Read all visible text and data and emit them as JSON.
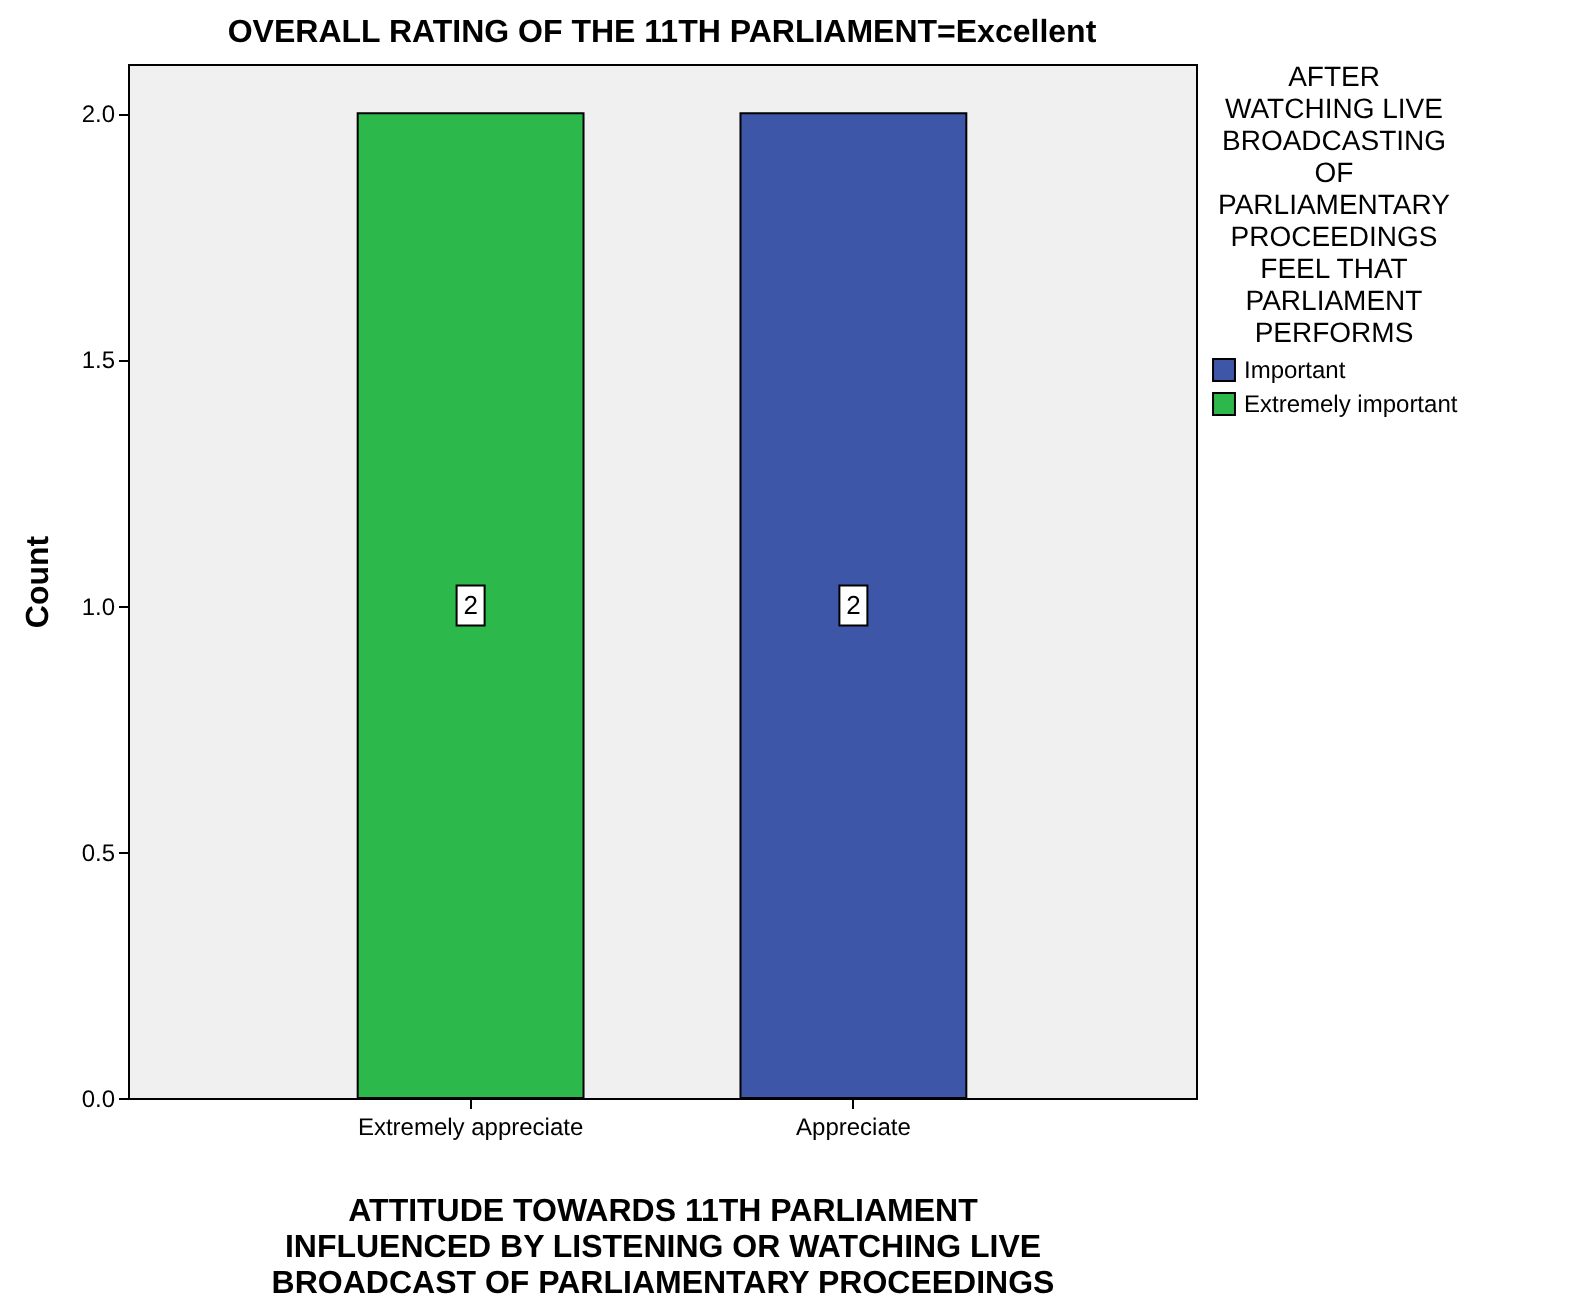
{
  "chart_data": {
    "type": "bar",
    "title": "OVERALL RATING OF THE 11TH PARLIAMENT=Excellent",
    "xlabel": "ATTITUDE TOWARDS 11TH PARLIAMENT INFLUENCED BY LISTENING OR WATCHING LIVE BROADCAST OF PARLIAMENTARY PROCEEDINGS",
    "ylabel": "Count",
    "legend_title": "AFTER WATCHING LIVE BROADCASTING OF PARLIAMENTARY PROCEEDINGS FEEL THAT PARLIAMENT PERFORMS",
    "categories": [
      "Extremely appreciate",
      "Appreciate"
    ],
    "series": [
      {
        "name": "Important",
        "color": "#3d56a8",
        "values": [
          null,
          2
        ]
      },
      {
        "name": "Extremely important",
        "color": "#2db84b",
        "values": [
          2,
          null
        ]
      }
    ],
    "stacked": true,
    "data_labels": true,
    "legend": "right",
    "grid": false,
    "ylim": [
      0,
      2.1
    ],
    "yticks": [
      {
        "value": 0,
        "label": "0.0"
      },
      0.5,
      {
        "value": 1,
        "label": "1.0"
      },
      1.5,
      {
        "value": 2,
        "label": "2.0"
      }
    ]
  }
}
